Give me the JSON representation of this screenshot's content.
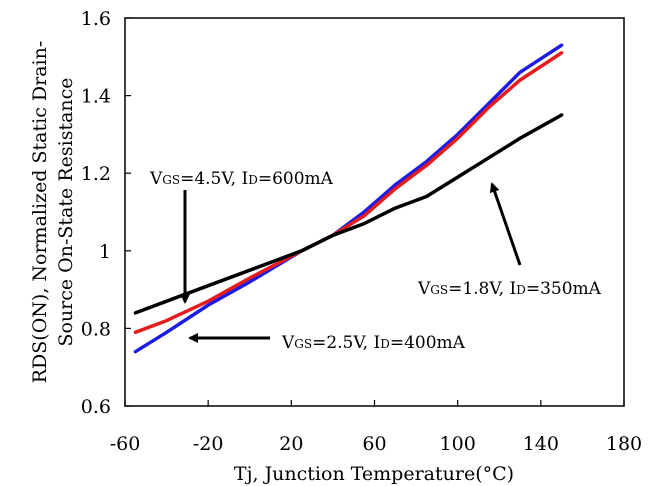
{
  "chart_data": {
    "type": "line",
    "title": "",
    "xlabel": "Tj, Junction Temperature(°C)",
    "ylabel_line1": "RDS(ON), Normalized Static Drain-",
    "ylabel_line2": "Source On-State Resistance",
    "xlim": [
      -60,
      180
    ],
    "ylim": [
      0.6,
      1.6
    ],
    "grid": false,
    "x_ticks": [
      "-60",
      "-20",
      "20",
      "60",
      "100",
      "140",
      "180"
    ],
    "y_ticks": [
      "0.6",
      "0.8",
      "1",
      "1.2",
      "1.4",
      "1.6"
    ],
    "series": [
      {
        "name": "VGS=4.5V, ID=600mA",
        "color": "#1c1ce6",
        "x": [
          -55,
          -40,
          -20,
          0,
          25,
          40,
          55,
          70,
          85,
          100,
          115,
          130,
          150
        ],
        "y": [
          0.74,
          0.79,
          0.86,
          0.92,
          1.0,
          1.04,
          1.1,
          1.17,
          1.23,
          1.3,
          1.38,
          1.46,
          1.53
        ]
      },
      {
        "name": "VGS=2.5V, ID=400mA",
        "color": "#e61c1c",
        "x": [
          -55,
          -40,
          -20,
          0,
          25,
          40,
          55,
          70,
          85,
          100,
          115,
          130,
          150
        ],
        "y": [
          0.79,
          0.82,
          0.87,
          0.93,
          1.0,
          1.04,
          1.09,
          1.16,
          1.22,
          1.29,
          1.37,
          1.44,
          1.51
        ]
      },
      {
        "name": "VGS=1.8V, ID=350mA",
        "color": "#000000",
        "x": [
          -55,
          -40,
          -20,
          0,
          25,
          40,
          55,
          70,
          85,
          100,
          115,
          130,
          150
        ],
        "y": [
          0.84,
          0.87,
          0.91,
          0.95,
          1.0,
          1.04,
          1.07,
          1.11,
          1.14,
          1.19,
          1.24,
          1.29,
          1.35
        ]
      }
    ],
    "annotations": [
      {
        "main1": "V",
        "sub1": "GS",
        "mid": "=4.5V, I",
        "sub2": "D",
        "rest": "=600mA"
      },
      {
        "main1": "V",
        "sub1": "GS",
        "mid": "=2.5V, I",
        "sub2": "D",
        "rest": "=400mA"
      },
      {
        "main1": "V",
        "sub1": "GS",
        "mid": "=1.8V, I",
        "sub2": "D",
        "rest": "=350mA"
      }
    ]
  }
}
